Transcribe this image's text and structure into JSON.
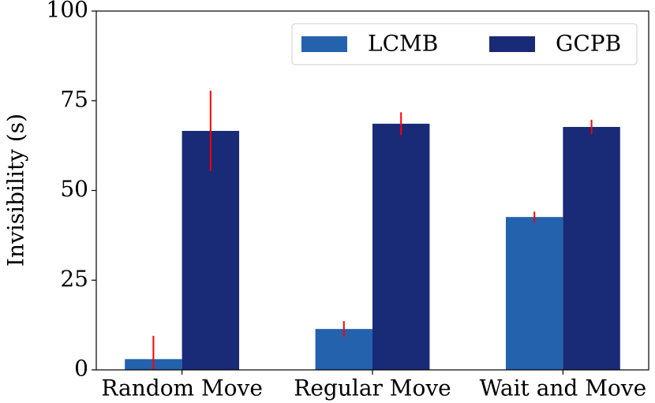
{
  "chart_data": {
    "type": "bar",
    "y_label": "Invisibility (s)",
    "categories": [
      "Random Move",
      "Regular Move",
      "Wait and Move"
    ],
    "series": [
      {
        "name": "LCMB",
        "color": "#2462ae",
        "values": [
          3,
          11.4,
          42.6
        ],
        "errors": [
          6.5,
          2.2,
          1.5
        ]
      },
      {
        "name": "GCPB",
        "color": "#192a76",
        "values": [
          66.6,
          68.6,
          67.7
        ],
        "errors": [
          11.2,
          3.2,
          2
        ]
      }
    ],
    "error_color": "#ff0000",
    "ylim": [
      0,
      100
    ],
    "yticks": [
      0,
      25,
      50,
      75,
      100
    ],
    "grid": false,
    "legend": "upper right"
  }
}
